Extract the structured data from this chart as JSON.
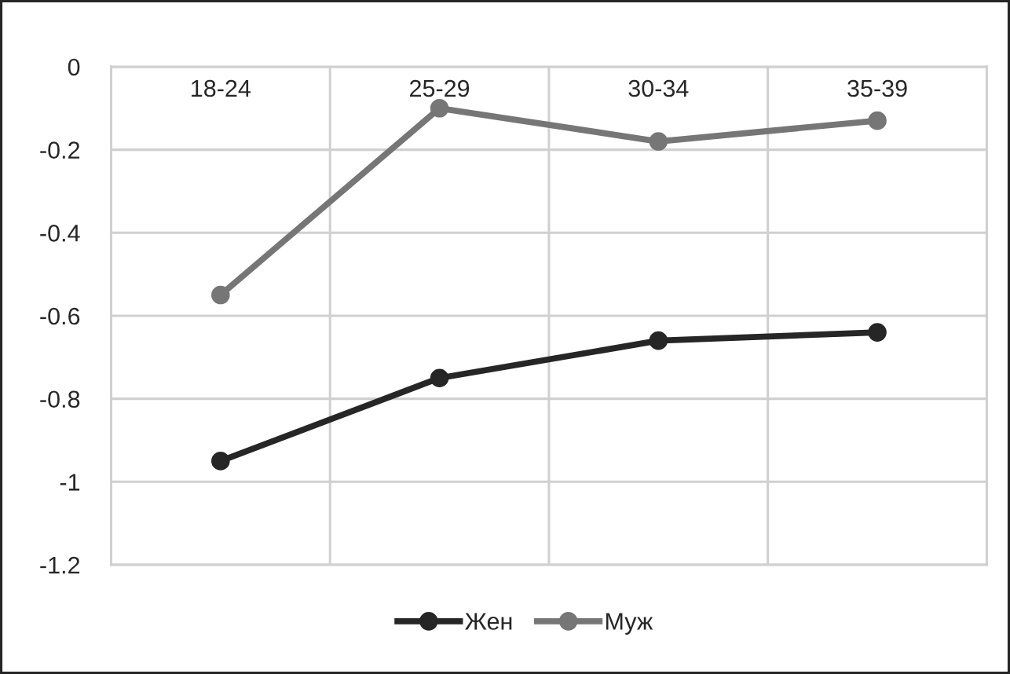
{
  "chart_data": {
    "type": "line",
    "categories": [
      "18-24",
      "25-29",
      "30-34",
      "35-39"
    ],
    "series": [
      {
        "name": "Жен",
        "color": "#262626",
        "values": [
          -0.95,
          -0.75,
          -0.66,
          -0.64
        ]
      },
      {
        "name": "Муж",
        "color": "#767676",
        "values": [
          -0.55,
          -0.1,
          -0.18,
          -0.13
        ]
      }
    ],
    "ylim": [
      -1.2,
      0
    ],
    "yticks": [
      -1.2,
      -1,
      -0.8,
      -0.6,
      -0.4,
      -0.2,
      0
    ],
    "grid": true,
    "legend": "bottom",
    "marker": "circle",
    "line_style": "solid"
  }
}
